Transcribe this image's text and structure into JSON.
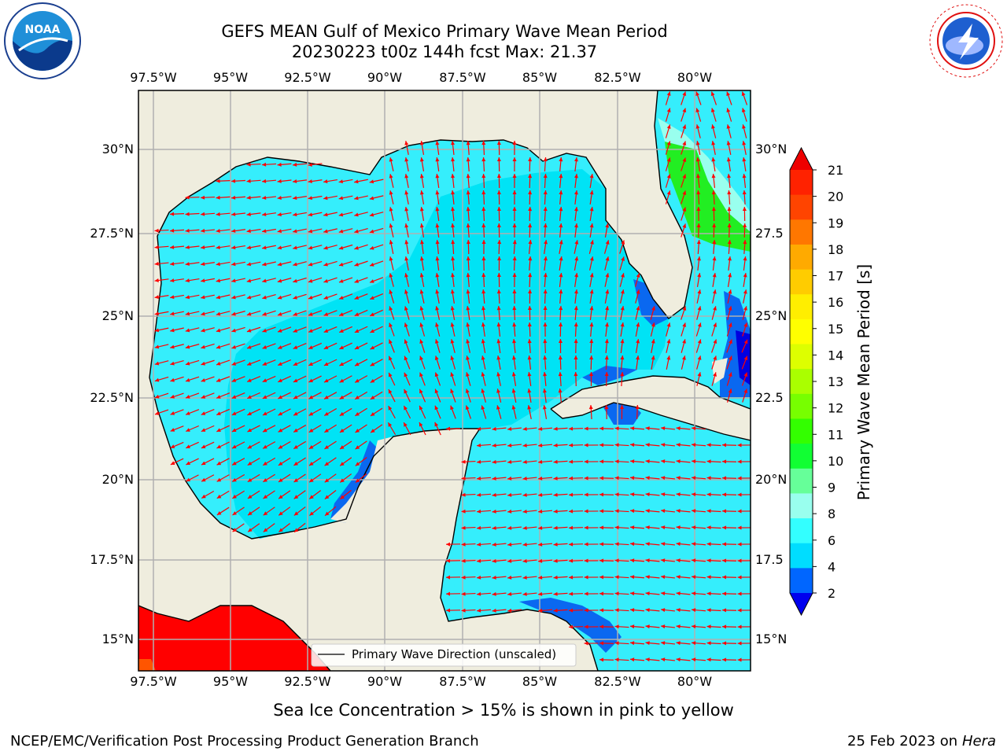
{
  "title": {
    "line1": "GEFS MEAN Gulf of Mexico Primary Wave Mean Period",
    "line2": "20230223 t00z 144h fcst   Max: 21.37"
  },
  "logos": {
    "noaa": {
      "text": "NOAA",
      "ring_text": "NATIONAL OCEANIC AND ATMOSPHERIC ADMINISTRATION · U.S. DEPARTMENT OF COMMERCE"
    },
    "nws": {
      "ring_text": "NATIONAL WEATHER SERVICE"
    }
  },
  "axes": {
    "lon_ticks": [
      "97.5°W",
      "95°W",
      "92.5°W",
      "90°W",
      "87.5°W",
      "85°W",
      "82.5°W",
      "80°W"
    ],
    "lat_ticks_left": [
      "30°N",
      "27.5°N",
      "25°N",
      "22.5°N",
      "20°N",
      "17.5°N",
      "15°N"
    ],
    "lat_ticks_right": [
      "30°N",
      "27.5",
      "25°N",
      "22.5",
      "20°N",
      "17.5",
      "15°N"
    ]
  },
  "legend": {
    "label": "Primary Wave Direction (unscaled)"
  },
  "colorbar": {
    "label": "Primary Wave Mean Period [s]",
    "ticks": [
      "21",
      "20",
      "19",
      "18",
      "17",
      "16",
      "15",
      "14",
      "13",
      "12",
      "11",
      "10",
      "9",
      "8",
      "6",
      "4",
      "2"
    ],
    "colors": [
      "#ff2200",
      "#ff4400",
      "#ff7700",
      "#ffaa00",
      "#ffcc00",
      "#ffee00",
      "#ffff00",
      "#ddff00",
      "#aaff00",
      "#77ff00",
      "#33ff00",
      "#11ff33",
      "#66ff99",
      "#99ffee",
      "#33ffff",
      "#00ddff",
      "#0066ff"
    ],
    "over_color": "#ee0000",
    "under_color": "#0000ee"
  },
  "colors": {
    "land": "#efedde",
    "water_light": "#35eefc",
    "water_mid": "#00e3f5",
    "water_blue": "#0a68f0",
    "arrow": "#ff0000",
    "high_period": "#ff0000"
  },
  "footnote": "Sea Ice Concentration > 15% is shown in pink to yellow",
  "credits": {
    "left": "NCEP/EMC/Verification Post Processing Product Generation Branch",
    "right_date": "25 Feb 2023 on",
    "right_host": "Hera"
  }
}
